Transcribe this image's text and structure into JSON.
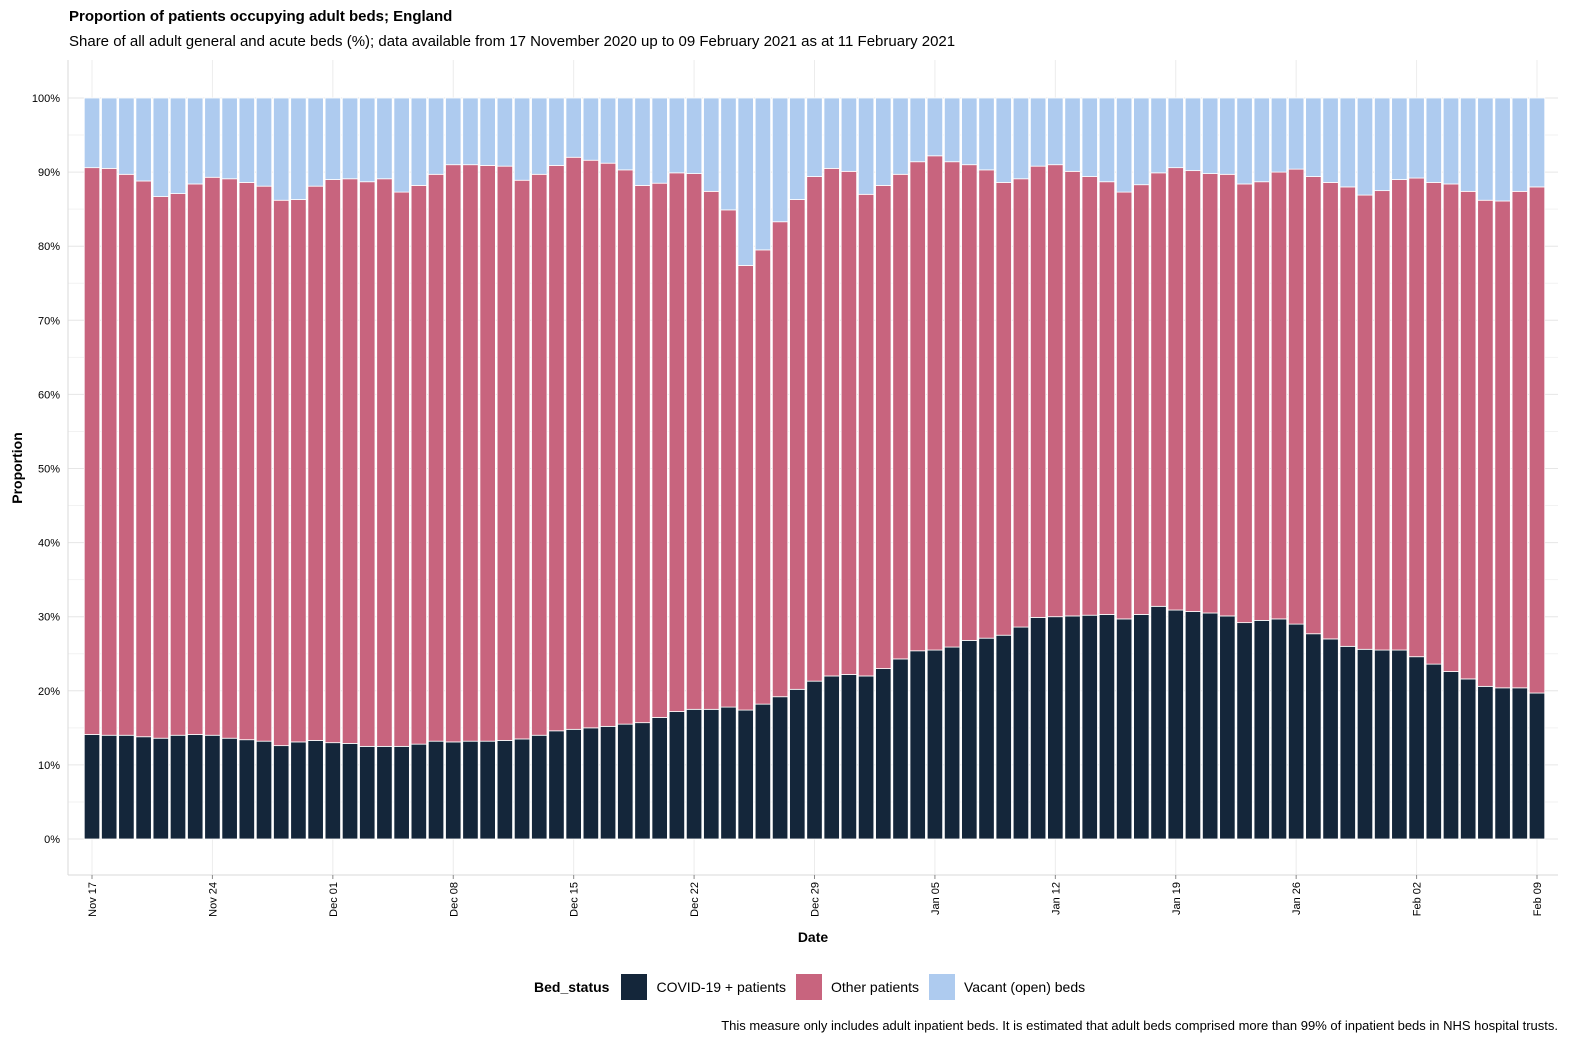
{
  "header": {
    "title": "Proportion of patients occupying adult beds; England",
    "subtitle": "Share of all adult general and acute beds (%); data available from 17 November 2020 up to 09 February 2021 as at 11 February 2021"
  },
  "legend": {
    "title": "Bed_status",
    "items": [
      {
        "label": "COVID-19 + patients",
        "color": "#14263a"
      },
      {
        "label": "Other patients",
        "color": "#c8647e"
      },
      {
        "label": "Vacant (open) beds",
        "color": "#aecbef"
      }
    ]
  },
  "caption": "This measure only includes adult inpatient beds. It is estimated that adult beds comprised more than 99% of inpatient beds in NHS hospital trusts.",
  "chart_data": {
    "type": "bar",
    "stacked": true,
    "xlabel": "Date",
    "ylabel": "Proportion",
    "ylim": [
      0,
      100
    ],
    "yticks": [
      "0%",
      "10%",
      "20%",
      "30%",
      "40%",
      "50%",
      "60%",
      "70%",
      "80%",
      "90%",
      "100%"
    ],
    "xticks": [
      {
        "index": 0,
        "label": "Nov 17"
      },
      {
        "index": 7,
        "label": "Nov 24"
      },
      {
        "index": 14,
        "label": "Dec 01"
      },
      {
        "index": 21,
        "label": "Dec 08"
      },
      {
        "index": 28,
        "label": "Dec 15"
      },
      {
        "index": 35,
        "label": "Dec 22"
      },
      {
        "index": 42,
        "label": "Dec 29"
      },
      {
        "index": 49,
        "label": "Jan 05"
      },
      {
        "index": 56,
        "label": "Jan 12"
      },
      {
        "index": 63,
        "label": "Jan 19"
      },
      {
        "index": 70,
        "label": "Jan 26"
      },
      {
        "index": 77,
        "label": "Feb 02"
      },
      {
        "index": 84,
        "label": "Feb 09"
      }
    ],
    "categories": [
      "Nov 17",
      "Nov 18",
      "Nov 19",
      "Nov 20",
      "Nov 21",
      "Nov 22",
      "Nov 23",
      "Nov 24",
      "Nov 25",
      "Nov 26",
      "Nov 27",
      "Nov 28",
      "Nov 29",
      "Nov 30",
      "Dec 01",
      "Dec 02",
      "Dec 03",
      "Dec 04",
      "Dec 05",
      "Dec 06",
      "Dec 07",
      "Dec 08",
      "Dec 09",
      "Dec 10",
      "Dec 11",
      "Dec 12",
      "Dec 13",
      "Dec 14",
      "Dec 15",
      "Dec 16",
      "Dec 17",
      "Dec 18",
      "Dec 19",
      "Dec 20",
      "Dec 21",
      "Dec 22",
      "Dec 23",
      "Dec 24",
      "Dec 25",
      "Dec 26",
      "Dec 27",
      "Dec 28",
      "Dec 29",
      "Dec 30",
      "Dec 31",
      "Jan 01",
      "Jan 02",
      "Jan 03",
      "Jan 04",
      "Jan 05",
      "Jan 06",
      "Jan 07",
      "Jan 08",
      "Jan 09",
      "Jan 10",
      "Jan 11",
      "Jan 12",
      "Jan 13",
      "Jan 14",
      "Jan 15",
      "Jan 16",
      "Jan 17",
      "Jan 18",
      "Jan 19",
      "Jan 20",
      "Jan 21",
      "Jan 22",
      "Jan 23",
      "Jan 24",
      "Jan 25",
      "Jan 26",
      "Jan 27",
      "Jan 28",
      "Jan 29",
      "Jan 30",
      "Jan 31",
      "Feb 01",
      "Feb 02",
      "Feb 03",
      "Feb 04",
      "Feb 05",
      "Feb 06",
      "Feb 07",
      "Feb 08",
      "Feb 09"
    ],
    "series": [
      {
        "name": "COVID-19 + patients",
        "values": [
          14.1,
          14.0,
          14.0,
          13.8,
          13.6,
          14.0,
          14.1,
          14.0,
          13.6,
          13.4,
          13.2,
          12.6,
          13.1,
          13.3,
          13.0,
          12.9,
          12.5,
          12.5,
          12.5,
          12.8,
          13.2,
          13.1,
          13.2,
          13.2,
          13.3,
          13.5,
          14.0,
          14.6,
          14.8,
          15.0,
          15.2,
          15.5,
          15.7,
          16.4,
          17.2,
          17.5,
          17.5,
          17.8,
          17.4,
          18.2,
          19.2,
          20.2,
          21.3,
          22.0,
          22.2,
          22.0,
          23.0,
          24.3,
          25.4,
          25.5,
          25.9,
          26.8,
          27.1,
          27.5,
          28.6,
          29.9,
          30.0,
          30.1,
          30.2,
          30.3,
          29.7,
          30.3,
          31.4,
          30.9,
          30.7,
          30.5,
          30.1,
          29.2,
          29.5,
          29.7,
          29.0,
          27.7,
          27.0,
          26.0,
          25.6,
          25.5,
          25.5,
          24.6,
          23.6,
          22.6,
          21.6,
          20.6,
          20.4,
          20.4,
          19.7
        ]
      },
      {
        "name": "Other patients",
        "values": [
          76.5,
          76.5,
          75.7,
          75.0,
          73.1,
          73.1,
          74.3,
          75.3,
          75.5,
          75.2,
          74.9,
          73.6,
          73.2,
          74.8,
          76.0,
          76.2,
          76.2,
          76.6,
          74.8,
          75.4,
          76.5,
          77.9,
          77.8,
          77.7,
          77.5,
          75.4,
          75.7,
          76.3,
          77.2,
          76.6,
          76.0,
          74.8,
          72.5,
          72.1,
          72.7,
          72.3,
          69.9,
          67.1,
          60.0,
          61.3,
          64.1,
          66.1,
          68.1,
          68.5,
          67.9,
          65.0,
          65.2,
          65.4,
          66.0,
          66.7,
          65.5,
          64.2,
          63.2,
          61.1,
          60.5,
          60.9,
          61.0,
          60.0,
          59.2,
          58.4,
          57.6,
          58.0,
          58.5,
          59.7,
          59.5,
          59.3,
          59.6,
          59.2,
          59.2,
          60.3,
          61.4,
          61.7,
          61.6,
          62.0,
          61.3,
          62.0,
          63.5,
          64.6,
          65.0,
          65.8,
          65.8,
          65.6,
          65.7,
          67.0,
          68.3
        ]
      },
      {
        "name": "Vacant (open) beds",
        "values": [
          9.4,
          9.5,
          10.3,
          11.2,
          13.3,
          12.9,
          11.6,
          10.7,
          10.9,
          11.4,
          11.9,
          13.8,
          13.7,
          11.9,
          11.0,
          10.9,
          11.3,
          10.9,
          12.7,
          11.8,
          10.3,
          9.0,
          9.0,
          9.1,
          9.2,
          11.1,
          10.3,
          9.1,
          8.0,
          8.4,
          8.8,
          9.7,
          11.8,
          11.5,
          10.1,
          10.2,
          12.6,
          15.1,
          22.6,
          20.5,
          16.7,
          13.7,
          10.6,
          9.5,
          9.9,
          13.0,
          11.8,
          10.3,
          8.6,
          7.8,
          8.6,
          9.0,
          9.7,
          11.4,
          10.9,
          9.2,
          9.0,
          9.9,
          10.6,
          11.3,
          12.7,
          11.7,
          10.1,
          9.4,
          9.8,
          10.2,
          10.3,
          11.6,
          11.3,
          10.0,
          9.6,
          10.6,
          11.4,
          12.0,
          13.1,
          12.5,
          11.0,
          10.8,
          11.4,
          11.6,
          12.6,
          13.8,
          13.9,
          12.6,
          12.0
        ]
      }
    ],
    "grid": true,
    "legend_position": "bottom"
  }
}
